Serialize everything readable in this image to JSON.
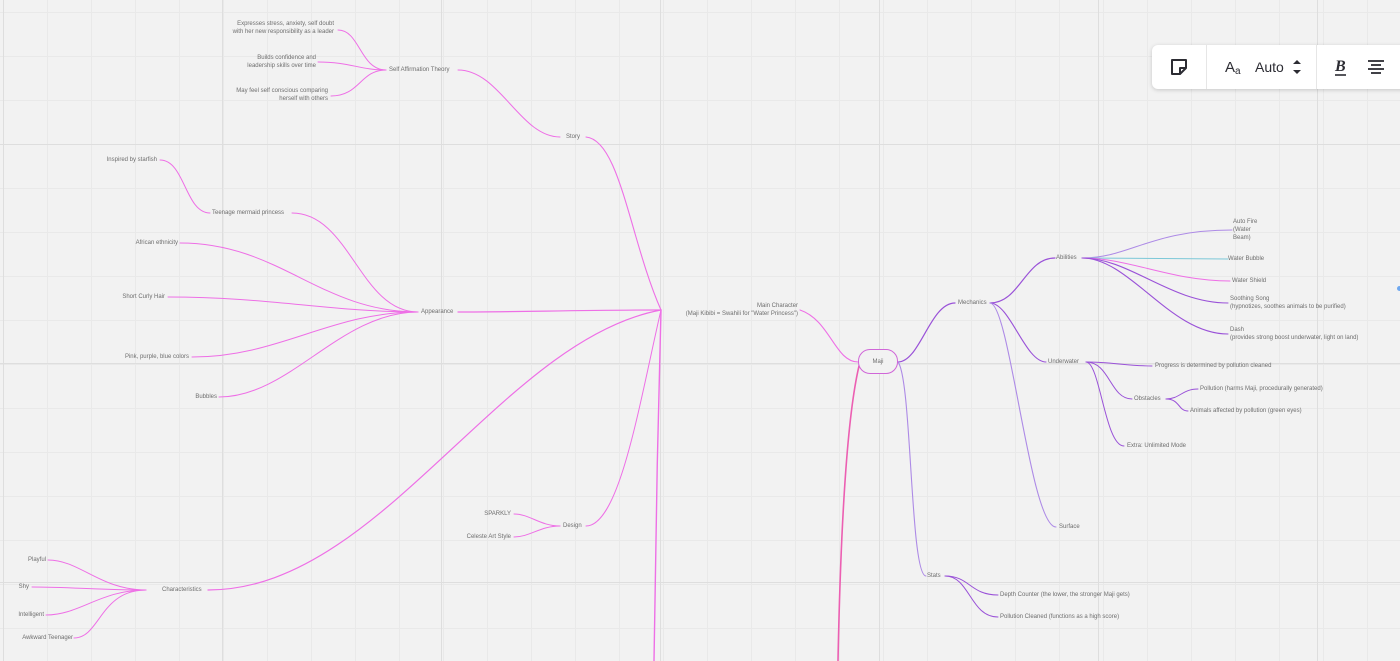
{
  "mindmap": {
    "root": "Maji",
    "nodes": {
      "main_character": "Main Character\n(Maji Kibibi = Swahili for \"Water Princess\")",
      "story": "Story",
      "self_affirmation": "Self Affirmation Theory",
      "sa_item_1": "Expresses stress, anxiety, self doubt\nwith her new responsibility as a leader",
      "sa_item_2": "Builds confidence and\nleadership skills over time",
      "sa_item_3": "May feel self conscious comparing\nherself with others",
      "appearance": "Appearance",
      "teenage_mermaid": "Teenage mermaid princess",
      "inspired_starfish": "Inspired by starfish",
      "african_ethnicity": "African ethnicity",
      "short_curly_hair": "Short Curly Hair",
      "colors": "Pink, purple, blue colors",
      "bubbles": "Bubbles",
      "design": "Design",
      "sparkly": "SPARKLY",
      "celeste": "Celeste Art Style",
      "characteristics": "Characteristics",
      "playful": "Playful",
      "shy": "Shy",
      "intelligent": "Intelligent",
      "awkward": "Awkward Teenager",
      "mechanics": "Mechanics",
      "abilities": "Abilities",
      "auto_fire": "Auto Fire\n(Water\nBeam)",
      "water_bubble": "Water Bubble",
      "water_shield": "Water Shield",
      "soothing_song": "Soothing Song\n(hypnotizes, soothes animals to be purified)",
      "dash": "Dash\n(provides strong boost underwater, light on land)",
      "underwater": "Underwater",
      "progress": "Progress is determined by pollution cleaned",
      "obstacles": "Obstacles",
      "pollution": "Pollution (harms Maji, procedurally generated)",
      "animals": "Animals affected by pollution (green eyes)",
      "extra": "Extra: Unlimited Mode",
      "surface": "Surface",
      "stats": "Stats",
      "depth_counter": "Depth Counter (the lower, the stronger Maji gets)",
      "pollution_cleaned": "Pollution Cleaned (functions as a high score)"
    },
    "colors": {
      "pink_branch": "#ee6fe6",
      "purple_branch": "#9a52d8",
      "lavender_branch": "#ad8ae6",
      "teal_branch": "#7cc8d8",
      "magenta_trunk": "#ec5fb2"
    }
  },
  "toolbar": {
    "sticky_note_icon": "sticky-note-icon",
    "font_icon": "font-size-icon",
    "font_size_value": "Auto",
    "bold_icon": "bold-icon",
    "align_icon": "align-center-icon"
  }
}
